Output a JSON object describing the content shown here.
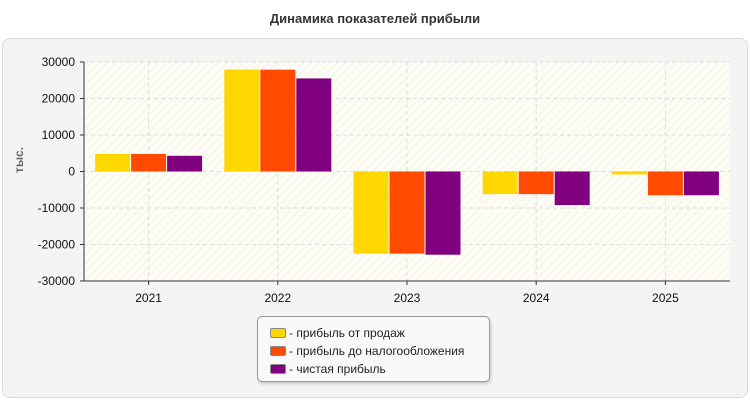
{
  "chart_data": {
    "type": "bar",
    "title": "Динамика показателей прибыли",
    "ylabel": "тыс.",
    "xlabel": "",
    "categories": [
      "2021",
      "2022",
      "2023",
      "2024",
      "2025"
    ],
    "ylim": [
      -30000,
      30000
    ],
    "yticks": [
      "30000",
      "20000",
      "10000",
      "0",
      "-10000",
      "-20000",
      "-30000"
    ],
    "grid": true,
    "legend_position": "bottom-center",
    "series": [
      {
        "name": "прибыль от продаж",
        "color": "#ffd700",
        "values": [
          4800,
          27900,
          -22500,
          -6200,
          -800
        ]
      },
      {
        "name": "прибыль до налогообложения",
        "color": "#ff4a00",
        "values": [
          4800,
          27900,
          -22500,
          -6200,
          -6500
        ]
      },
      {
        "name": "чистая прибыль",
        "color": "#800080",
        "values": [
          4300,
          25500,
          -22800,
          -9200,
          -6500
        ]
      }
    ]
  },
  "legend": {
    "item1": "- прибыль от продаж",
    "item2": "- прибыль до налогообложения",
    "item3": "- чистая прибыль"
  }
}
